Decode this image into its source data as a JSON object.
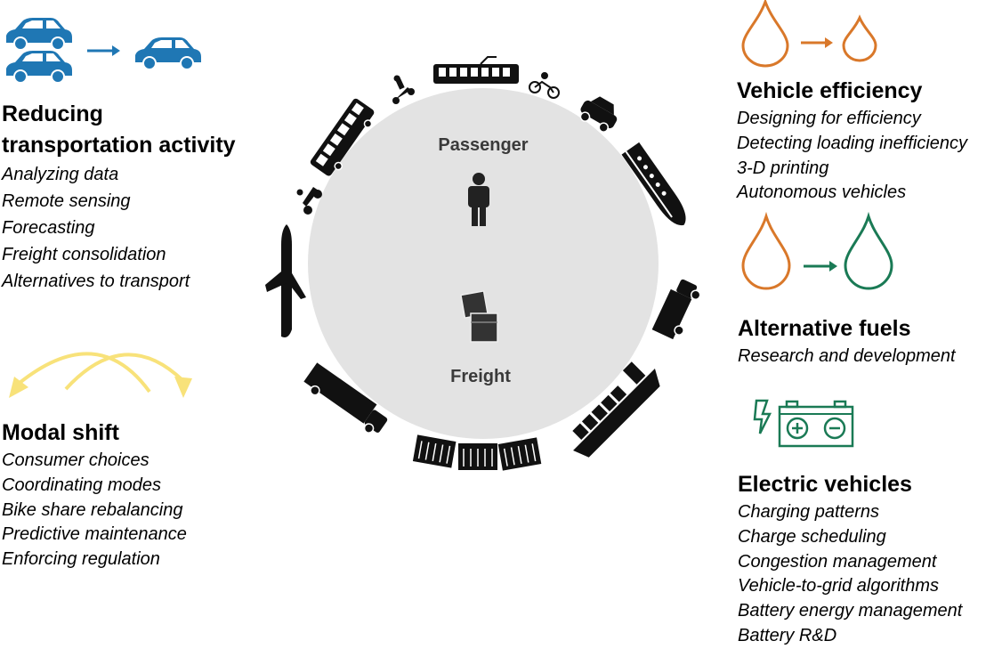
{
  "reducing": {
    "title_line1": "Reducing",
    "title_line2": "transportation activity",
    "items": [
      "Analyzing data",
      "Remote sensing",
      "Forecasting",
      "Freight consolidation",
      "Alternatives to transport"
    ]
  },
  "modal_shift": {
    "title": "Modal shift",
    "items": [
      "Consumer choices",
      "Coordinating modes",
      "Bike share rebalancing",
      "Predictive maintenance",
      "Enforcing regulation"
    ]
  },
  "vehicle_efficiency": {
    "title": "Vehicle efficiency",
    "items": [
      "Designing for efficiency",
      "Detecting loading inefficiency",
      "3-D printing",
      "Autonomous vehicles"
    ]
  },
  "alternative_fuels": {
    "title": "Alternative fuels",
    "items": [
      "Research and development"
    ]
  },
  "electric_vehicles": {
    "title": "Electric vehicles",
    "items": [
      "Charging patterns",
      "Charge scheduling",
      "Congestion management",
      "Vehicle-to-grid algorithms",
      "Battery energy management",
      "Battery R&D"
    ]
  },
  "circle": {
    "passenger_label": "Passenger",
    "freight_label": "Freight"
  },
  "colors": {
    "car_blue": "#1f77b4",
    "fuel_orange": "#d9782a",
    "fuel_green": "#1a7a55",
    "modal_yellow": "#f8e27a",
    "circle_gray": "#e3e3e3"
  },
  "icons": {
    "reducing": "two-cars-to-one-car-icon",
    "modal_shift": "curved-arrows-icon",
    "vehicle_efficiency": "large-drop-to-small-drop-icon",
    "alternative_fuels": "orange-drop-to-green-drop-icon",
    "electric_vehicles": "battery-charge-icon",
    "passenger": "person-icon",
    "freight": "boxes-icon"
  }
}
